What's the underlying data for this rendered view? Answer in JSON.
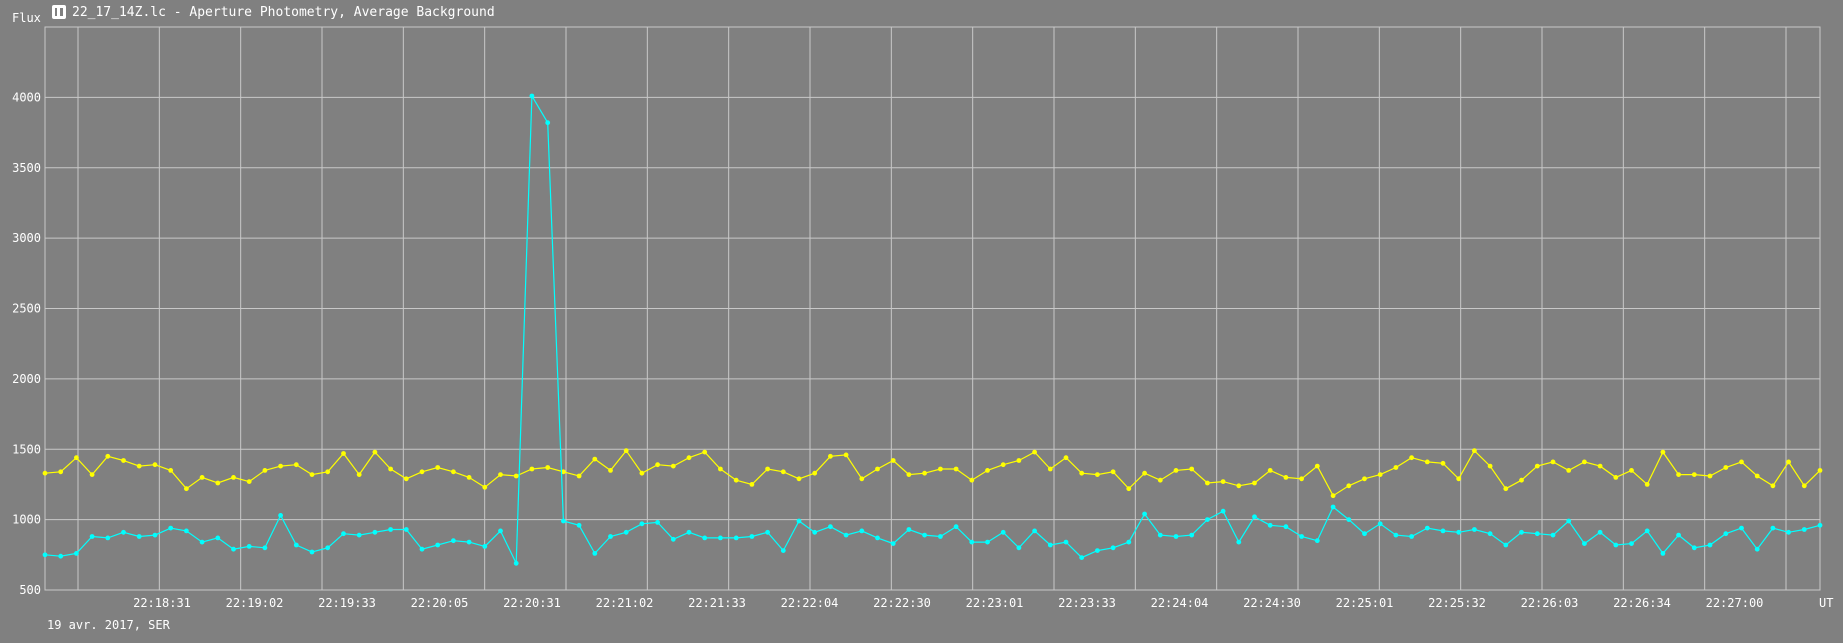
{
  "window": {
    "title": "22_17_14Z.lc - Aperture Photometry, Average Background",
    "icon": "aperture-app-icon"
  },
  "chart_data": {
    "type": "line",
    "ylabel": "Flux",
    "xlabel": "UT",
    "date_label": "19 avr. 2017, SER",
    "ylim": [
      500,
      4500
    ],
    "y_ticks": [
      500,
      1000,
      1500,
      2000,
      2500,
      3000,
      3500,
      4000
    ],
    "x_tick_labels": [
      "22:18:31",
      "22:19:02",
      "22:19:33",
      "22:20:05",
      "22:20:31",
      "22:21:02",
      "22:21:33",
      "22:22:04",
      "22:22:30",
      "22:23:01",
      "22:23:33",
      "22:24:04",
      "22:24:30",
      "22:25:01",
      "22:25:32",
      "22:26:03",
      "22:26:34",
      "22:27:00"
    ],
    "grid": true,
    "colors": {
      "background": "#808080",
      "grid": "#c8c8c8",
      "series_yellow": "#ffff00",
      "series_cyan": "#00ffff"
    },
    "series": [
      {
        "color": "#ffff00",
        "values": [
          1330,
          1340,
          1440,
          1320,
          1450,
          1420,
          1380,
          1390,
          1350,
          1220,
          1300,
          1260,
          1300,
          1270,
          1350,
          1380,
          1390,
          1320,
          1340,
          1470,
          1320,
          1480,
          1360,
          1290,
          1340,
          1370,
          1340,
          1300,
          1230,
          1320,
          1310,
          1360,
          1370,
          1340,
          1310,
          1430,
          1350,
          1490,
          1330,
          1390,
          1380,
          1440,
          1480,
          1360,
          1280,
          1250,
          1360,
          1340,
          1290,
          1330,
          1450,
          1460,
          1290,
          1360,
          1420,
          1320,
          1330,
          1360,
          1360,
          1280,
          1350,
          1390,
          1420,
          1480,
          1360,
          1440,
          1330,
          1320,
          1340,
          1220,
          1330,
          1280,
          1350,
          1360,
          1260,
          1270,
          1240,
          1260,
          1350,
          1300,
          1290,
          1380,
          1170,
          1240,
          1290,
          1320,
          1370,
          1440,
          1410,
          1400,
          1290,
          1490,
          1380,
          1220,
          1280,
          1380,
          1410,
          1350,
          1410,
          1380,
          1300,
          1350,
          1250,
          1480,
          1320,
          1320,
          1310,
          1370,
          1410,
          1310,
          1240,
          1410,
          1240,
          1350
        ]
      },
      {
        "color": "#00ffff",
        "values": [
          750,
          740,
          760,
          880,
          870,
          910,
          880,
          890,
          940,
          920,
          840,
          870,
          790,
          810,
          800,
          1030,
          820,
          770,
          800,
          900,
          890,
          910,
          930,
          930,
          790,
          820,
          850,
          840,
          810,
          920,
          690,
          4010,
          3820,
          990,
          960,
          760,
          880,
          910,
          970,
          980,
          860,
          910,
          870,
          870,
          870,
          880,
          910,
          780,
          990,
          910,
          950,
          890,
          920,
          870,
          830,
          930,
          890,
          880,
          950,
          840,
          840,
          910,
          800,
          920,
          820,
          840,
          730,
          780,
          800,
          840,
          1040,
          890,
          880,
          890,
          1000,
          1060,
          840,
          1020,
          960,
          950,
          880,
          850,
          1090,
          1000,
          900,
          970,
          890,
          880,
          940,
          920,
          910,
          930,
          900,
          820,
          910,
          900,
          890,
          990,
          830,
          910,
          820,
          830,
          920,
          760,
          890,
          800,
          820,
          900,
          940,
          790,
          940,
          910,
          930,
          960
        ]
      }
    ]
  }
}
